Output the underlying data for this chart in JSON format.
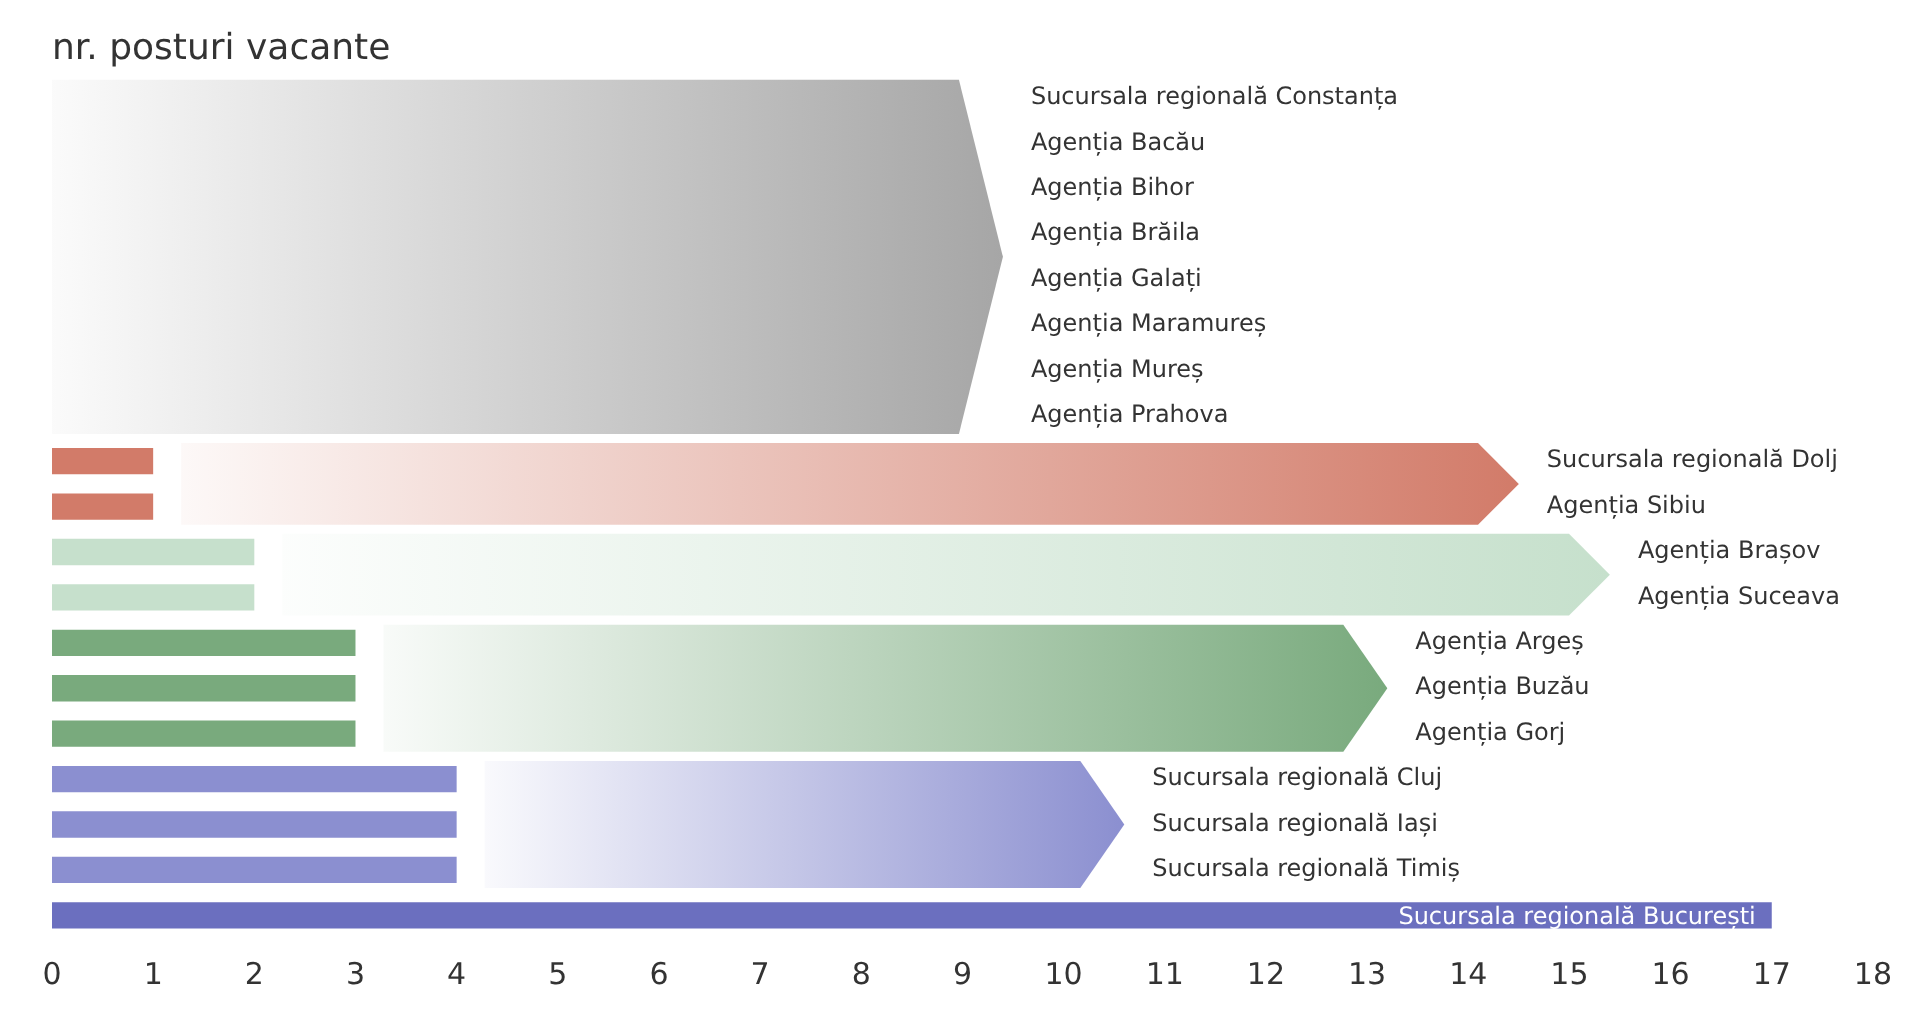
{
  "chart_data": {
    "type": "bar",
    "orientation": "horizontal",
    "title": "nr. posturi vacante",
    "categories": [
      "Sucursala regională Constanța",
      "Agenția Bacău",
      "Agenția Bihor",
      "Agenția Brăila",
      "Agenția Galați",
      "Agenția Maramureș",
      "Agenția Mureș",
      "Agenția Prahova",
      "Sucursala regională Dolj",
      "Agenția Sibiu",
      "Agenția Brașov",
      "Agenția Suceava",
      "Agenția Argeș",
      "Agenția Buzău",
      "Agenția Gorj",
      "Sucursala regională Cluj",
      "Sucursala regională Iași",
      "Sucursala regională Timiș",
      "Sucursala regională București"
    ],
    "values": [
      0,
      0,
      0,
      0,
      0,
      0,
      0,
      0,
      1,
      1,
      2,
      2,
      3,
      3,
      3,
      4,
      4,
      4,
      17
    ],
    "colors": [
      "#a6a6a6",
      "#a6a6a6",
      "#a6a6a6",
      "#a6a6a6",
      "#a6a6a6",
      "#a6a6a6",
      "#a6a6a6",
      "#a6a6a6",
      "#d27b69",
      "#d27b69",
      "#c6e0cc",
      "#c6e0cc",
      "#79aa7d",
      "#79aa7d",
      "#79aa7d",
      "#8b8fd0",
      "#8b8fd0",
      "#8b8fd0",
      "#6b6fbf"
    ],
    "xlim": [
      0,
      18
    ],
    "xticks": [
      0,
      1,
      2,
      3,
      4,
      5,
      6,
      7,
      8,
      9,
      10,
      11,
      12,
      13,
      14,
      15,
      16,
      17,
      18
    ],
    "grid": false,
    "legend": false
  }
}
